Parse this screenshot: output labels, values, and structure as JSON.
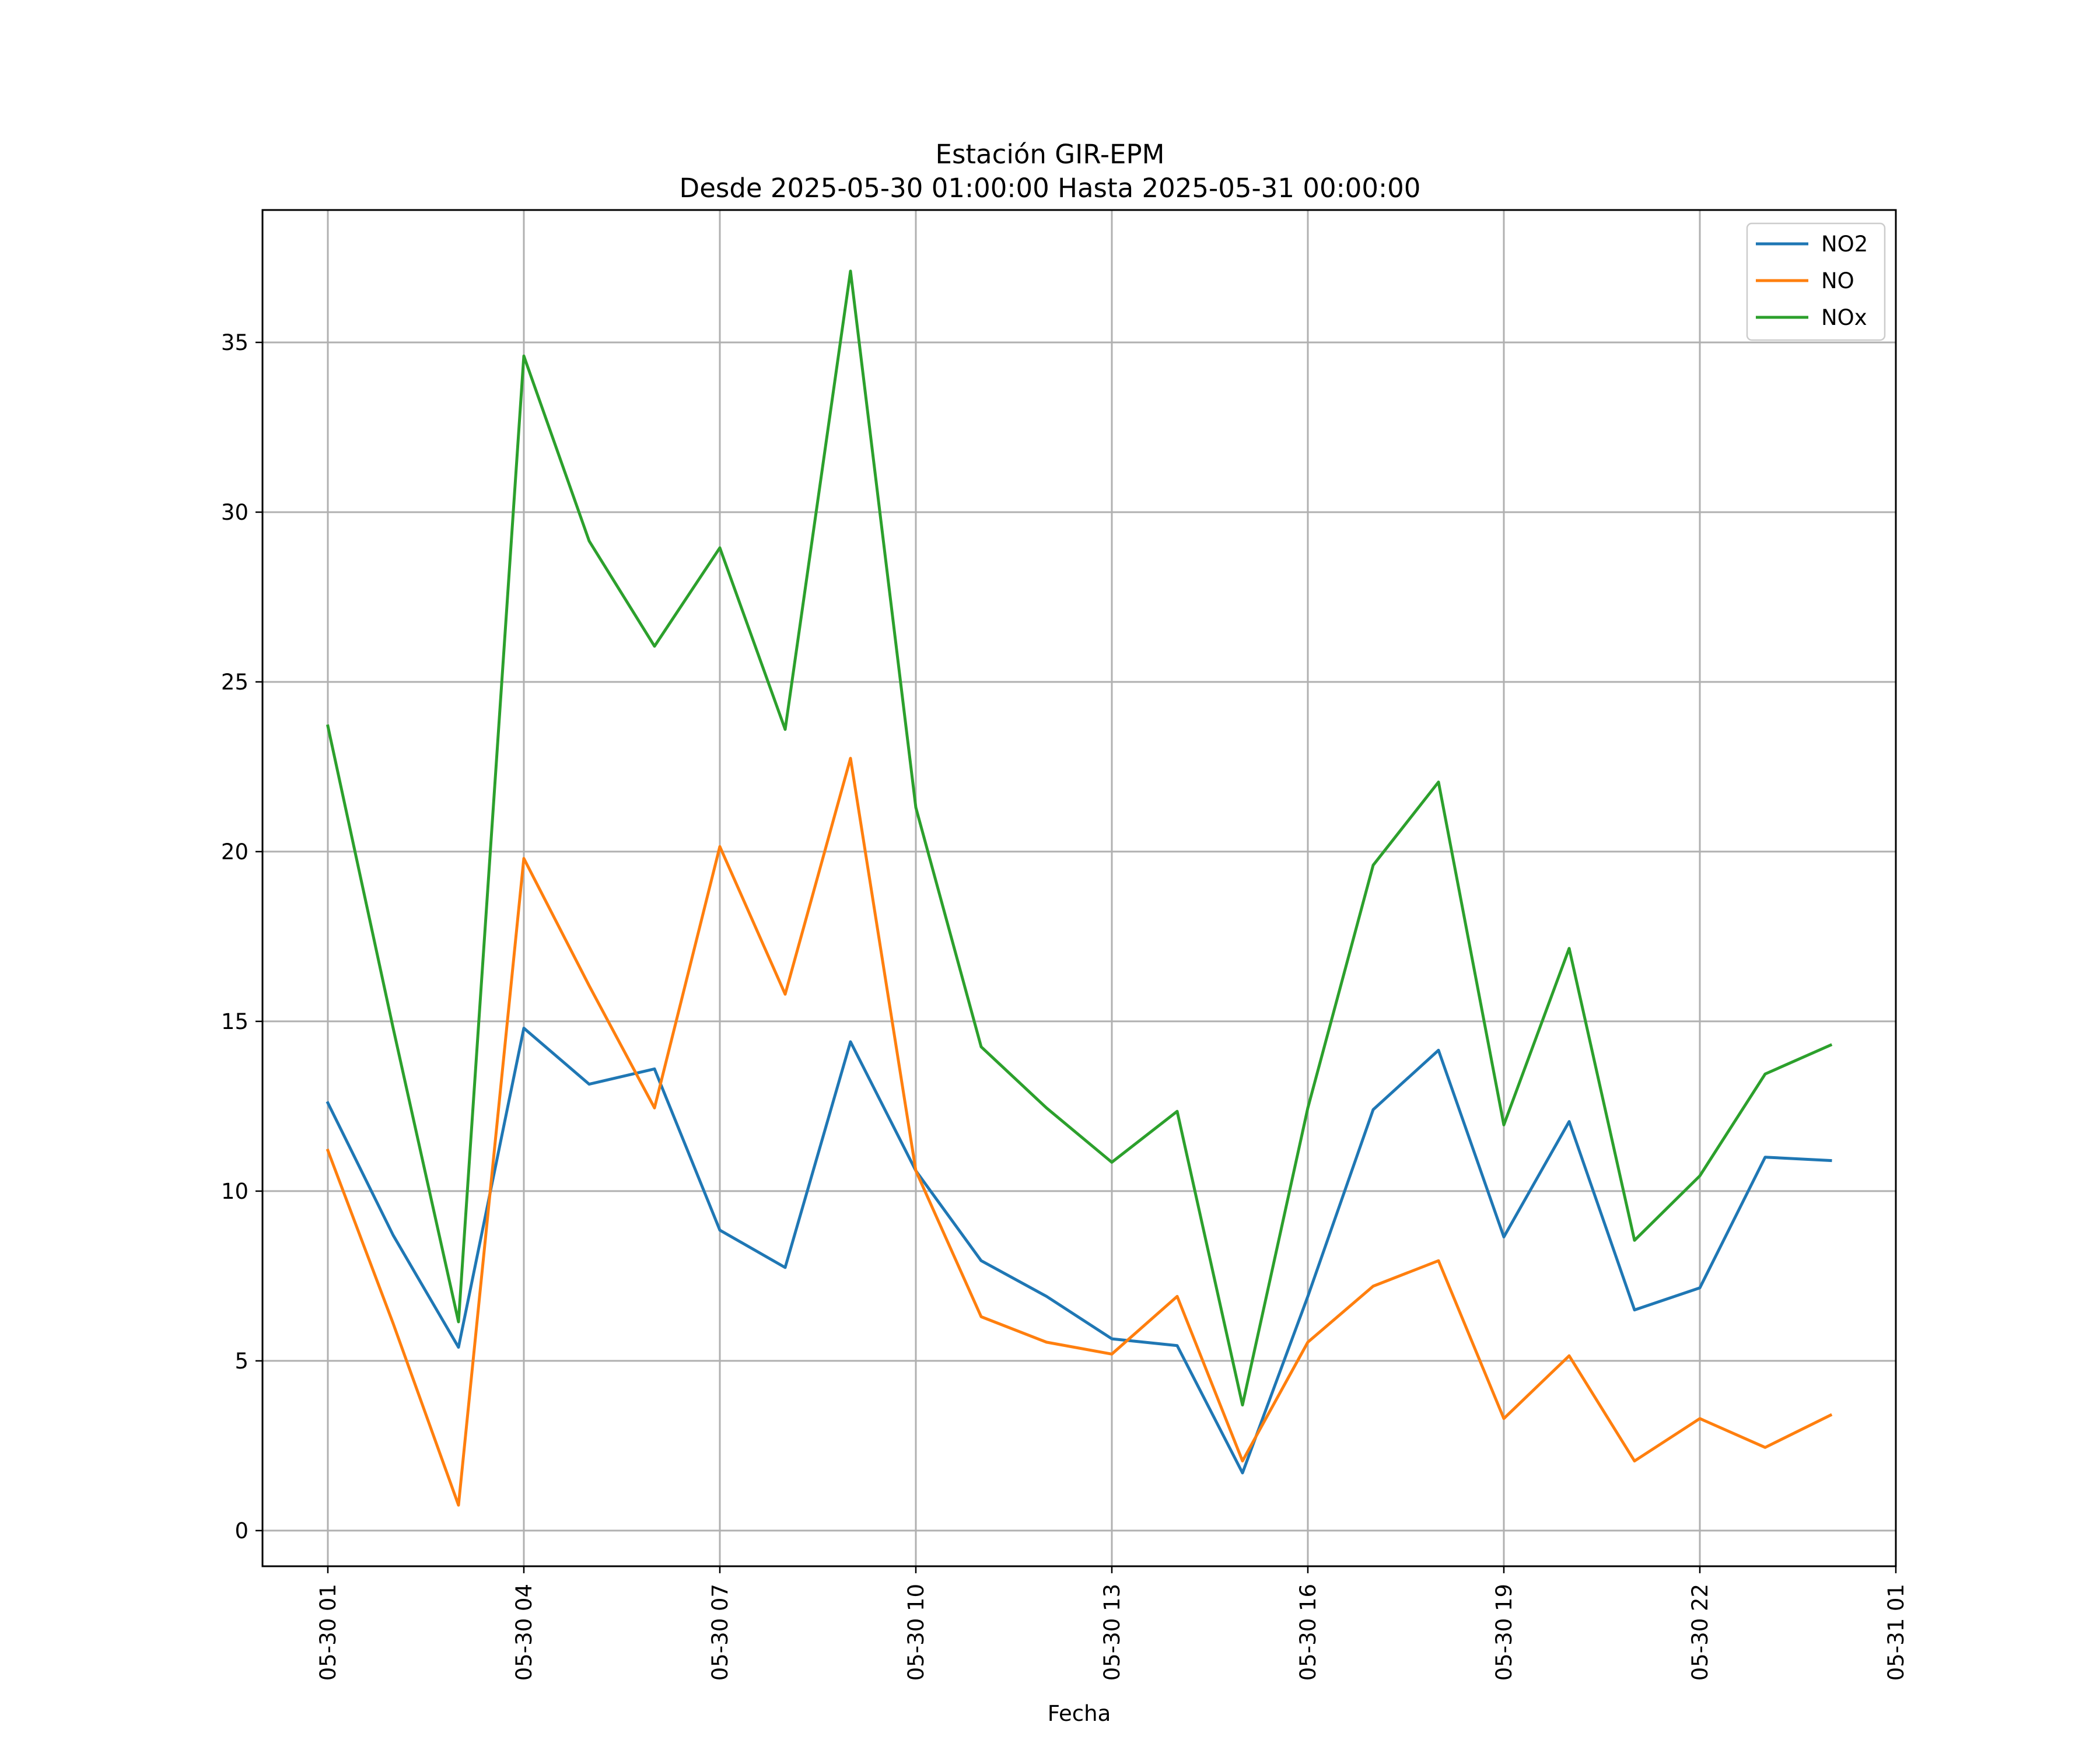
{
  "chart_data": {
    "type": "line",
    "title_line1": "Estación GIR-EPM",
    "title_line2": "Desde 2025-05-30 01:00:00 Hasta 2025-05-31 00:00:00",
    "xlabel": "Fecha",
    "ylabel": "",
    "x": [
      "2025-05-30 01:00",
      "2025-05-30 02:00",
      "2025-05-30 03:00",
      "2025-05-30 04:00",
      "2025-05-30 05:00",
      "2025-05-30 06:00",
      "2025-05-30 07:00",
      "2025-05-30 08:00",
      "2025-05-30 09:00",
      "2025-05-30 10:00",
      "2025-05-30 11:00",
      "2025-05-30 12:00",
      "2025-05-30 13:00",
      "2025-05-30 14:00",
      "2025-05-30 15:00",
      "2025-05-30 16:00",
      "2025-05-30 17:00",
      "2025-05-30 18:00",
      "2025-05-30 19:00",
      "2025-05-30 20:00",
      "2025-05-30 21:00",
      "2025-05-30 22:00",
      "2025-05-30 23:00",
      "2025-05-31 00:00"
    ],
    "xlim": [
      "2025-05-30 00:00",
      "2025-05-31 01:00"
    ],
    "xticks": [
      {
        "value": "2025-05-30 01:00",
        "label": "05-30 01"
      },
      {
        "value": "2025-05-30 04:00",
        "label": "05-30 04"
      },
      {
        "value": "2025-05-30 07:00",
        "label": "05-30 07"
      },
      {
        "value": "2025-05-30 10:00",
        "label": "05-30 10"
      },
      {
        "value": "2025-05-30 13:00",
        "label": "05-30 13"
      },
      {
        "value": "2025-05-30 16:00",
        "label": "05-30 16"
      },
      {
        "value": "2025-05-30 19:00",
        "label": "05-30 19"
      },
      {
        "value": "2025-05-30 22:00",
        "label": "05-30 22"
      },
      {
        "value": "2025-05-31 01:00",
        "label": "05-31 01"
      }
    ],
    "ylim": [
      -1.05,
      38.9
    ],
    "yticks": [
      0,
      5,
      10,
      15,
      20,
      25,
      30,
      35
    ],
    "grid": true,
    "legend_position": "top-right",
    "series": [
      {
        "name": "NO2",
        "color": "#1f77b4",
        "values": [
          12.6,
          8.7,
          5.4,
          14.8,
          13.15,
          13.6,
          8.85,
          7.75,
          14.4,
          10.6,
          7.95,
          6.9,
          5.65,
          5.45,
          1.7,
          6.9,
          12.4,
          14.15,
          8.65,
          12.05,
          6.5,
          7.15,
          11.0,
          10.9
        ]
      },
      {
        "name": "NO",
        "color": "#ff7f0e",
        "values": [
          11.2,
          6.1,
          0.75,
          19.8,
          16.05,
          12.45,
          20.15,
          15.8,
          22.75,
          10.6,
          6.3,
          5.55,
          5.2,
          6.9,
          2.05,
          5.55,
          7.2,
          7.95,
          3.3,
          5.15,
          2.05,
          3.3,
          2.45,
          3.4
        ]
      },
      {
        "name": "NOx",
        "color": "#2ca02c",
        "values": [
          23.7,
          14.8,
          6.15,
          34.6,
          29.15,
          26.05,
          28.95,
          23.6,
          37.1,
          21.3,
          14.25,
          12.45,
          10.85,
          12.35,
          3.7,
          12.45,
          19.6,
          22.05,
          11.95,
          17.15,
          8.55,
          10.45,
          13.45,
          14.3
        ]
      }
    ]
  }
}
